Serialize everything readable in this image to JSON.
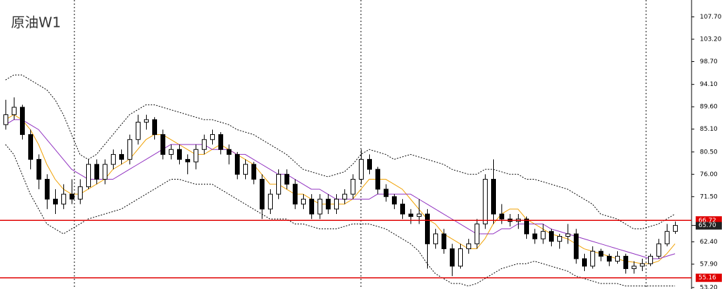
{
  "chart_data": {
    "type": "candlestick",
    "title": "原油W1",
    "ylim": [
      52.9,
      111.1
    ],
    "yticks": [
      {
        "value": 107.7,
        "label": "107.70"
      },
      {
        "value": 103.2,
        "label": "103.20"
      },
      {
        "value": 98.7,
        "label": "98.70"
      },
      {
        "value": 94.1,
        "label": "94.10"
      },
      {
        "value": 89.6,
        "label": "89.60"
      },
      {
        "value": 85.1,
        "label": "85.10"
      },
      {
        "value": 80.5,
        "label": "80.50"
      },
      {
        "value": 76,
        "label": "76.00"
      },
      {
        "value": 71.5,
        "label": "71.50"
      },
      {
        "value": 62.4,
        "label": "62.40"
      },
      {
        "value": 57.9,
        "label": "57.90"
      },
      {
        "value": 53.2,
        "label": "53.20"
      }
    ],
    "levels": [
      {
        "value": 66.72,
        "label": "66.72",
        "color": "#e00000"
      },
      {
        "value": 55.16,
        "label": "55.16",
        "color": "#e00000"
      }
    ],
    "current_price": {
      "value": 65.7,
      "label": "65.70"
    },
    "candles": [
      [
        86,
        91,
        85,
        88
      ],
      [
        88,
        91.5,
        87,
        89.5
      ],
      [
        89.5,
        90,
        83,
        84
      ],
      [
        84,
        85,
        77,
        79
      ],
      [
        79,
        80,
        73,
        75
      ],
      [
        75,
        76,
        69,
        71
      ],
      [
        71,
        73,
        68,
        70
      ],
      [
        70,
        74,
        69,
        72
      ],
      [
        72,
        75,
        70,
        71
      ],
      [
        71,
        75,
        70,
        73.5
      ],
      [
        73.5,
        79,
        73,
        78
      ],
      [
        78,
        79,
        74,
        75
      ],
      [
        75,
        79,
        74,
        78
      ],
      [
        78,
        81,
        77,
        80
      ],
      [
        80,
        81,
        78,
        79
      ],
      [
        79,
        84,
        78,
        83
      ],
      [
        83,
        88,
        82,
        86.5
      ],
      [
        86.5,
        88,
        85,
        87
      ],
      [
        87,
        87.5,
        83,
        84
      ],
      [
        84,
        85,
        79,
        80
      ],
      [
        80,
        82,
        79,
        81
      ],
      [
        81,
        82,
        78,
        79
      ],
      [
        79,
        80,
        76,
        78.5
      ],
      [
        78.5,
        82,
        77,
        81
      ],
      [
        81,
        84,
        80,
        83
      ],
      [
        83,
        85,
        82,
        84
      ],
      [
        84,
        84.5,
        80,
        81
      ],
      [
        81,
        82,
        78,
        80
      ],
      [
        80,
        80.5,
        75,
        76
      ],
      [
        76,
        79,
        75,
        78
      ],
      [
        78,
        78.5,
        74,
        75
      ],
      [
        75,
        76,
        67,
        69
      ],
      [
        69,
        73,
        68,
        72
      ],
      [
        72,
        77,
        71,
        76
      ],
      [
        76,
        77,
        73,
        74
      ],
      [
        74,
        75,
        69,
        70
      ],
      [
        70,
        72,
        69,
        71
      ],
      [
        71,
        72,
        67,
        68
      ],
      [
        68,
        72,
        67,
        71
      ],
      [
        71,
        72,
        68,
        69
      ],
      [
        69,
        72,
        68,
        71
      ],
      [
        71,
        73,
        70,
        72
      ],
      [
        72,
        76,
        71,
        75
      ],
      [
        75,
        81,
        74,
        79
      ],
      [
        79,
        80,
        76,
        77
      ],
      [
        77,
        77.5,
        72,
        73
      ],
      [
        73,
        74,
        70.5,
        71.5
      ],
      [
        71.5,
        72,
        69,
        70
      ],
      [
        70,
        71,
        67,
        68
      ],
      [
        68,
        69,
        66,
        67.5
      ],
      [
        67.5,
        71,
        66,
        68
      ],
      [
        68,
        69,
        57,
        62
      ],
      [
        62,
        65,
        61,
        64
      ],
      [
        64,
        65,
        60,
        61
      ],
      [
        61,
        62,
        55.5,
        57.5
      ],
      [
        57.5,
        62,
        57,
        61
      ],
      [
        61,
        63,
        60,
        62
      ],
      [
        62,
        67,
        61,
        66
      ],
      [
        66,
        76,
        65,
        75
      ],
      [
        75,
        79,
        66,
        68
      ],
      [
        68,
        70,
        66,
        67
      ],
      [
        67,
        68,
        65.5,
        66.5
      ],
      [
        66.5,
        68,
        65,
        67
      ],
      [
        67,
        67.5,
        63,
        64
      ],
      [
        64,
        65,
        62,
        63
      ],
      [
        63,
        66,
        62,
        64.5
      ],
      [
        64.5,
        65,
        61.5,
        62.5
      ],
      [
        62.5,
        64,
        61,
        63.5
      ],
      [
        63.5,
        66,
        62,
        64
      ],
      [
        64,
        65,
        58,
        59
      ],
      [
        59,
        60,
        56.5,
        57.5
      ],
      [
        57.5,
        61.5,
        57,
        60.5
      ],
      [
        60.5,
        61,
        58.5,
        59.5
      ],
      [
        59.5,
        60,
        57.5,
        58.5
      ],
      [
        58.5,
        60.5,
        58,
        59.5
      ],
      [
        59.5,
        60,
        56,
        57
      ],
      [
        57,
        58.5,
        56,
        57.5
      ],
      [
        57.5,
        59,
        56.5,
        58
      ],
      [
        58,
        60,
        57.5,
        59.5
      ],
      [
        59.5,
        63,
        59,
        62
      ],
      [
        62,
        66,
        61.5,
        64.5
      ],
      [
        64.5,
        66.5,
        64,
        65.7
      ]
    ],
    "series": [
      {
        "color": "#f0a000",
        "dashed": false,
        "values": [
          87,
          88,
          87,
          85,
          82,
          78,
          75,
          73,
          72,
          72,
          73,
          74,
          75,
          77,
          78,
          79,
          81,
          83,
          84,
          84,
          83,
          82,
          81,
          80,
          80,
          81,
          82,
          81,
          80,
          79,
          78,
          76,
          74,
          74,
          73,
          72,
          72,
          71,
          70,
          70,
          70,
          70,
          71,
          73,
          75,
          75,
          75,
          74,
          73,
          71,
          69,
          67,
          66,
          64,
          63,
          62,
          61,
          61,
          63,
          66,
          68,
          69,
          69,
          67,
          66,
          65,
          64,
          63.5,
          63,
          62,
          61,
          60.5,
          60,
          59.5,
          59,
          58.5,
          58.3,
          58,
          58,
          58.5,
          60,
          62
        ]
      },
      {
        "color": "#9030c0",
        "dashed": false,
        "values": [
          86,
          87,
          87,
          86,
          85,
          83,
          81,
          79,
          77,
          76,
          75,
          75,
          75,
          75,
          76,
          77,
          78,
          79,
          80,
          81,
          82,
          82,
          82,
          82,
          82,
          81,
          81,
          81,
          80,
          80,
          79,
          78,
          77,
          76,
          76,
          75,
          74,
          73,
          73,
          72,
          71,
          71,
          71,
          71,
          71,
          72,
          72,
          72,
          72,
          72,
          71,
          70,
          69,
          68,
          67,
          66,
          65,
          64,
          64,
          64,
          65,
          65,
          66,
          66,
          66,
          66,
          65,
          64.5,
          64,
          63.5,
          63,
          62.5,
          62,
          61.5,
          61,
          60.5,
          60,
          59.5,
          59,
          59,
          59.5,
          60
        ]
      },
      {
        "color": "#000000",
        "dashed": true,
        "values": [
          95,
          96,
          96,
          95,
          94,
          93,
          91,
          88,
          84,
          80,
          79,
          80,
          82,
          84,
          86,
          88,
          89,
          90,
          90,
          89.5,
          89,
          88.5,
          88,
          87.5,
          87,
          87,
          86.5,
          86,
          85,
          84.5,
          84,
          83,
          82,
          81,
          80,
          78.5,
          77,
          76.5,
          76,
          75.5,
          76,
          76.5,
          78,
          80,
          81,
          80.5,
          80,
          79,
          79.5,
          80,
          79.5,
          79,
          78.5,
          78,
          77,
          76.5,
          76,
          76,
          77,
          77,
          76.5,
          76,
          76,
          75,
          75,
          74.5,
          74,
          73.5,
          73,
          72,
          71,
          70,
          68,
          67.5,
          67,
          66,
          65,
          65,
          65.5,
          66,
          67,
          68
        ]
      },
      {
        "color": "#000000",
        "dashed": true,
        "values": [
          82,
          80,
          76,
          72,
          69,
          66,
          65,
          64,
          65,
          66,
          67,
          67.5,
          68,
          68.5,
          69,
          70,
          71,
          72,
          73,
          74,
          75,
          75,
          74.5,
          74,
          74,
          74,
          73,
          72,
          71,
          70,
          69,
          68,
          67,
          67,
          67,
          66,
          66,
          65.5,
          65,
          65,
          65,
          65.5,
          66,
          66,
          66,
          65.5,
          65,
          64,
          63,
          62,
          60.5,
          58,
          56,
          55,
          54,
          54,
          53.5,
          54,
          55,
          56,
          57,
          57.5,
          58,
          58,
          58.5,
          58,
          57.5,
          57,
          56.5,
          55.5,
          55,
          54.5,
          54,
          54,
          54,
          53.5,
          53.5,
          53.5,
          53.5,
          53.5,
          53.5,
          53.5
        ]
      }
    ]
  }
}
